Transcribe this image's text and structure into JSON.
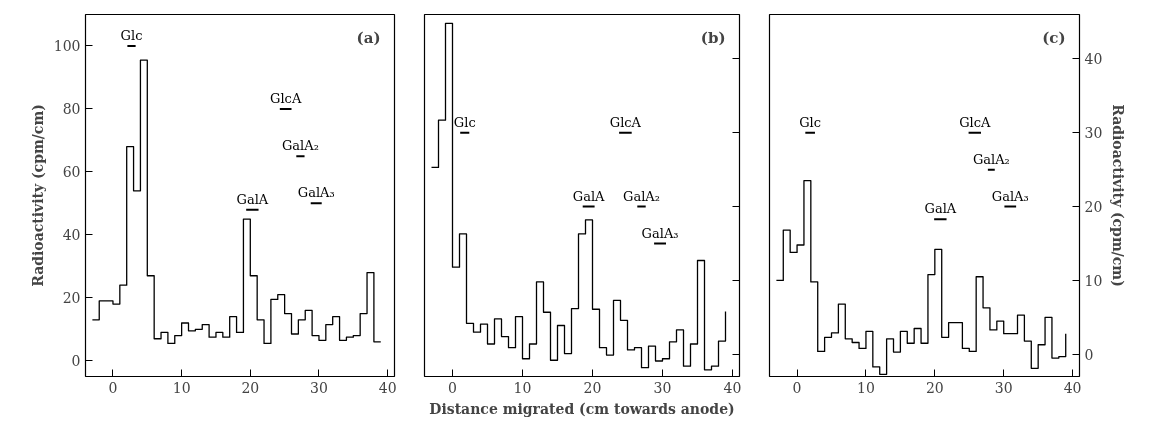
{
  "chart_data": [
    {
      "type": "step",
      "title": "(a)",
      "ylabel": "Radioactivity (cpm/cm)",
      "x": [
        -3,
        -2,
        -1,
        0,
        1,
        2,
        3,
        4,
        5,
        6,
        7,
        8,
        9,
        10,
        11,
        12,
        13,
        14,
        15,
        16,
        17,
        18,
        19,
        20,
        21,
        22,
        23,
        24,
        25,
        26,
        27,
        28,
        29,
        30,
        31,
        32,
        33,
        34,
        35,
        36,
        37,
        38,
        39
      ],
      "series": [
        {
          "color": "#000000",
          "values": [
            13,
            19,
            19,
            18,
            24,
            68,
            54,
            95.5,
            27,
            7,
            9,
            5.5,
            8,
            12,
            9.5,
            10,
            11.5,
            7.5,
            9,
            7.5,
            14,
            9,
            45,
            27,
            13,
            5.5,
            19.5,
            21,
            15,
            8.5,
            13,
            16,
            8,
            6.5,
            11.5,
            14,
            6.5,
            7.5,
            8,
            15,
            28,
            6,
            6
          ]
        },
        {
          "type": "line",
          "name": "Glc",
          "color": "#000000",
          "x": [
            2.1,
            3.3
          ],
          "values": [
            100,
            100
          ]
        },
        {
          "type": "line",
          "name": "GlcA",
          "color": "#000000",
          "x": [
            24.3,
            26
          ],
          "values": [
            80,
            80
          ]
        },
        {
          "type": "line",
          "name": "GalA₂",
          "color": "#000000",
          "x": [
            26.7,
            27.9
          ],
          "values": [
            65,
            65
          ]
        },
        {
          "type": "line",
          "name": "GalA₃",
          "color": "#000000",
          "x": [
            28.8,
            30.4
          ],
          "values": [
            50,
            50
          ]
        },
        {
          "type": "line",
          "name": "GalA",
          "color": "#000000",
          "x": [
            19.4,
            21.2
          ],
          "values": [
            48,
            48
          ]
        }
      ],
      "xlim": [
        -4,
        41
      ],
      "xticks": [
        0,
        10,
        20,
        30,
        40
      ],
      "ylim": [
        -5,
        110
      ],
      "yticks": [
        0,
        20,
        40,
        60,
        80,
        100
      ],
      "grid": false,
      "line_style": "solid"
    },
    {
      "type": "step",
      "title": "(b)",
      "xlabel": "Distance migrated (cm towards anode)",
      "x": [
        -3,
        -2,
        -1,
        0,
        1,
        2,
        3,
        4,
        5,
        6,
        7,
        8,
        9,
        10,
        11,
        12,
        13,
        14,
        15,
        16,
        17,
        18,
        19,
        20,
        21,
        22,
        23,
        24,
        25,
        26,
        27,
        28,
        29,
        30,
        31,
        32,
        33,
        34,
        35,
        36,
        37,
        38,
        39
      ],
      "series": [
        {
          "color": "#000000",
          "axis": "y2",
          "values": [
            25.3,
            31.7,
            44.8,
            11.8,
            16.3,
            4.2,
            3,
            4.1,
            1.4,
            4.8,
            2.4,
            0.9,
            5.1,
            -0.6,
            1.4,
            9.8,
            5.7,
            -0.8,
            3.9,
            0.1,
            6.2,
            16.3,
            18.2,
            6.1,
            0.9,
            -0.1,
            7.3,
            4.6,
            0.6,
            0.9,
            -1.8,
            1.1,
            -0.9,
            -0.6,
            1.7,
            3.3,
            -1.6,
            1.4,
            12.7,
            -2.1,
            -1.6,
            1.8,
            5.8
          ]
        },
        {
          "type": "line",
          "name": "Glc",
          "color": "#000000",
          "axis": "y2",
          "x": [
            1.1,
            2.4
          ],
          "values": [
            30,
            30
          ]
        },
        {
          "type": "line",
          "name": "GlcA",
          "color": "#000000",
          "axis": "y2",
          "x": [
            23.8,
            25.6
          ],
          "values": [
            30,
            30
          ]
        },
        {
          "type": "line",
          "name": "GalA",
          "color": "#000000",
          "axis": "y2",
          "x": [
            18.6,
            20.3
          ],
          "values": [
            20,
            20
          ]
        },
        {
          "type": "line",
          "name": "GalA₂",
          "color": "#000000",
          "axis": "y2",
          "x": [
            26.4,
            27.6
          ],
          "values": [
            20,
            20
          ]
        },
        {
          "type": "line",
          "name": "GalA₃",
          "color": "#000000",
          "axis": "y2",
          "x": [
            28.8,
            30.5
          ],
          "values": [
            15,
            15
          ]
        }
      ],
      "xlim": [
        -4,
        41
      ],
      "xticks": [
        0,
        10,
        20,
        30,
        40
      ],
      "y2lim": [
        -3,
        46
      ],
      "y2ticks": [
        {
          "value": 0,
          "label": null
        },
        {
          "value": 10,
          "label": null
        },
        {
          "value": 20,
          "label": null
        },
        {
          "value": 30,
          "label": null
        },
        {
          "value": 40,
          "label": null
        }
      ],
      "tick_labels": "x",
      "grid": false,
      "line_style": "solid"
    },
    {
      "type": "step",
      "title": "(c)",
      "y2label": "Radioactivity (cpm/cm)",
      "x": [
        -3,
        -2,
        -1,
        0,
        1,
        2,
        3,
        4,
        5,
        6,
        7,
        8,
        9,
        10,
        11,
        12,
        13,
        14,
        15,
        16,
        17,
        18,
        19,
        20,
        21,
        22,
        23,
        24,
        25,
        26,
        27,
        28,
        29,
        30,
        31,
        32,
        33,
        34,
        35,
        36,
        37,
        38,
        39
      ],
      "series": [
        {
          "color": "#000000",
          "axis": "y2",
          "values": [
            10,
            16.8,
            13.8,
            14.8,
            23.5,
            9.8,
            0.4,
            2.3,
            2.9,
            6.8,
            2.1,
            1.6,
            0.8,
            3.1,
            -1.7,
            -2.7,
            2.1,
            0.3,
            3.1,
            1.5,
            3.5,
            1.5,
            10.8,
            14.2,
            2.3,
            4.3,
            4.3,
            0.8,
            0.4,
            10.5,
            6.3,
            3.3,
            4.5,
            2.8,
            2.8,
            5.3,
            1.8,
            -1.9,
            1.3,
            5,
            -0.5,
            -0.3,
            2.8
          ]
        },
        {
          "type": "line",
          "name": "Glc",
          "color": "#000000",
          "axis": "y2",
          "x": [
            1.2,
            2.6
          ],
          "values": [
            30,
            30
          ]
        },
        {
          "type": "line",
          "name": "GlcA",
          "color": "#000000",
          "axis": "y2",
          "x": [
            24.9,
            26.7
          ],
          "values": [
            30,
            30
          ]
        },
        {
          "type": "line",
          "name": "GalA₂",
          "color": "#000000",
          "axis": "y2",
          "x": [
            27.7,
            28.7
          ],
          "values": [
            25,
            25
          ]
        },
        {
          "type": "line",
          "name": "GalA₃",
          "color": "#000000",
          "axis": "y2",
          "x": [
            30.1,
            31.8
          ],
          "values": [
            20,
            20
          ]
        },
        {
          "type": "line",
          "name": "GalA",
          "color": "#000000",
          "axis": "y2",
          "x": [
            19.9,
            21.7
          ],
          "values": [
            18.3,
            18.3
          ]
        }
      ],
      "xlim": [
        -4,
        41
      ],
      "xticks": [
        0,
        10,
        20,
        30,
        40
      ],
      "y2lim": [
        -3,
        46
      ],
      "y2ticks": [
        0,
        10,
        20,
        30,
        40
      ],
      "grid": false,
      "line_style": "solid"
    }
  ]
}
